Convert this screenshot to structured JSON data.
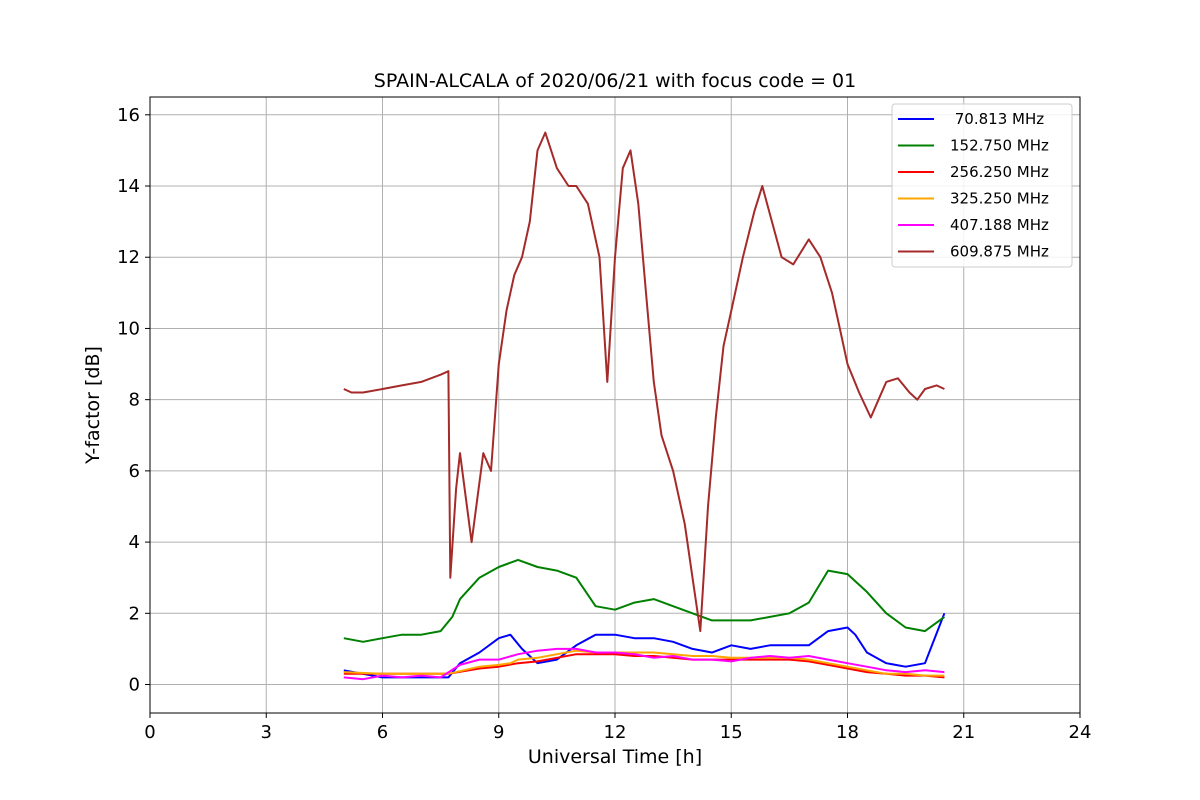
{
  "chart_data": {
    "type": "line",
    "title": "SPAIN-ALCALA of 2020/06/21 with focus code = 01",
    "xlabel": "Universal Time [h]",
    "ylabel": "Y-factor [dB]",
    "xlim": [
      0,
      24
    ],
    "ylim": [
      -0.8,
      16.5
    ],
    "xticks": [
      0,
      3,
      6,
      9,
      12,
      15,
      18,
      21,
      24
    ],
    "yticks": [
      0,
      2,
      4,
      6,
      8,
      10,
      12,
      14,
      16
    ],
    "grid": true,
    "legend_position": "top-right",
    "series": [
      {
        "name": " 70.813 MHz",
        "color": "#0000ff",
        "x": [
          5.0,
          6.0,
          7.0,
          7.7,
          8.0,
          8.5,
          9.0,
          9.3,
          9.6,
          10.0,
          10.5,
          11.0,
          11.5,
          12.0,
          12.5,
          13.0,
          13.5,
          14.0,
          14.5,
          15.0,
          15.5,
          16.0,
          16.5,
          17.0,
          17.5,
          18.0,
          18.2,
          18.5,
          19.0,
          19.5,
          20.0,
          20.5
        ],
        "y": [
          0.4,
          0.2,
          0.2,
          0.2,
          0.6,
          0.9,
          1.3,
          1.4,
          1.0,
          0.6,
          0.7,
          1.1,
          1.4,
          1.4,
          1.3,
          1.3,
          1.2,
          1.0,
          0.9,
          1.1,
          1.0,
          1.1,
          1.1,
          1.1,
          1.5,
          1.6,
          1.4,
          0.9,
          0.6,
          0.5,
          0.6,
          2.0
        ]
      },
      {
        "name": "152.750 MHz",
        "color": "#008000",
        "x": [
          5.0,
          5.5,
          6.0,
          6.5,
          7.0,
          7.5,
          7.8,
          8.0,
          8.5,
          9.0,
          9.5,
          10.0,
          10.5,
          11.0,
          11.5,
          12.0,
          12.5,
          13.0,
          13.5,
          14.0,
          14.5,
          15.0,
          15.5,
          16.0,
          16.5,
          17.0,
          17.5,
          18.0,
          18.5,
          19.0,
          19.5,
          20.0,
          20.5
        ],
        "y": [
          1.3,
          1.2,
          1.3,
          1.4,
          1.4,
          1.5,
          1.9,
          2.4,
          3.0,
          3.3,
          3.5,
          3.3,
          3.2,
          3.0,
          2.2,
          2.1,
          2.3,
          2.4,
          2.2,
          2.0,
          1.8,
          1.8,
          1.8,
          1.9,
          2.0,
          2.3,
          3.2,
          3.1,
          2.6,
          2.0,
          1.6,
          1.5,
          1.9
        ]
      },
      {
        "name": "256.250 MHz",
        "color": "#ff0000",
        "x": [
          5.0,
          6.0,
          7.0,
          7.7,
          8.5,
          9.0,
          9.5,
          10.0,
          10.5,
          11.0,
          11.5,
          12.0,
          12.5,
          13.0,
          13.5,
          14.0,
          14.5,
          15.0,
          15.5,
          16.0,
          16.5,
          17.0,
          17.5,
          18.0,
          18.5,
          19.0,
          19.5,
          20.0,
          20.5
        ],
        "y": [
          0.3,
          0.3,
          0.3,
          0.3,
          0.45,
          0.5,
          0.6,
          0.65,
          0.75,
          0.85,
          0.85,
          0.85,
          0.8,
          0.8,
          0.75,
          0.7,
          0.7,
          0.7,
          0.7,
          0.7,
          0.7,
          0.65,
          0.55,
          0.45,
          0.35,
          0.3,
          0.25,
          0.25,
          0.2
        ]
      },
      {
        "name": "325.250 MHz",
        "color": "#ffa500",
        "x": [
          5.0,
          6.0,
          7.0,
          7.7,
          8.5,
          9.0,
          9.3,
          9.5,
          10.0,
          10.5,
          11.0,
          11.5,
          12.0,
          12.5,
          13.0,
          13.5,
          14.0,
          14.5,
          15.0,
          15.5,
          16.0,
          16.5,
          17.0,
          17.5,
          18.0,
          18.5,
          19.0,
          19.5,
          20.0,
          20.5
        ],
        "y": [
          0.35,
          0.3,
          0.3,
          0.3,
          0.5,
          0.55,
          0.6,
          0.7,
          0.75,
          0.85,
          0.95,
          0.9,
          0.9,
          0.9,
          0.9,
          0.85,
          0.8,
          0.8,
          0.75,
          0.75,
          0.75,
          0.75,
          0.7,
          0.6,
          0.5,
          0.4,
          0.3,
          0.3,
          0.25,
          0.25
        ]
      },
      {
        "name": "407.188 MHz",
        "color": "#ff00ff",
        "x": [
          5.0,
          5.5,
          6.0,
          6.5,
          7.0,
          7.5,
          8.0,
          8.5,
          9.0,
          9.5,
          10.0,
          10.5,
          11.0,
          11.5,
          12.0,
          12.5,
          13.0,
          13.5,
          14.0,
          14.5,
          15.0,
          15.5,
          16.0,
          16.5,
          17.0,
          17.5,
          18.0,
          18.5,
          19.0,
          19.5,
          20.0,
          20.5
        ],
        "y": [
          0.2,
          0.15,
          0.25,
          0.2,
          0.25,
          0.2,
          0.55,
          0.7,
          0.7,
          0.85,
          0.95,
          1.0,
          1.0,
          0.9,
          0.9,
          0.85,
          0.75,
          0.8,
          0.7,
          0.7,
          0.65,
          0.75,
          0.8,
          0.75,
          0.8,
          0.7,
          0.6,
          0.5,
          0.4,
          0.35,
          0.4,
          0.35
        ]
      },
      {
        "name": "609.875 MHz",
        "color": "#a52a2a",
        "x": [
          5.0,
          5.2,
          5.5,
          6.0,
          6.5,
          7.0,
          7.5,
          7.7,
          7.75,
          7.9,
          8.0,
          8.3,
          8.6,
          8.8,
          9.0,
          9.2,
          9.4,
          9.6,
          9.8,
          10.0,
          10.2,
          10.5,
          10.8,
          11.0,
          11.3,
          11.6,
          11.8,
          12.0,
          12.2,
          12.4,
          12.6,
          12.8,
          13.0,
          13.2,
          13.5,
          13.8,
          14.0,
          14.2,
          14.4,
          14.6,
          14.8,
          15.0,
          15.3,
          15.6,
          15.8,
          16.0,
          16.3,
          16.6,
          17.0,
          17.3,
          17.6,
          17.8,
          18.0,
          18.3,
          18.6,
          18.8,
          19.0,
          19.3,
          19.6,
          19.8,
          20.0,
          20.3,
          20.5
        ],
        "y": [
          8.3,
          8.2,
          8.2,
          8.3,
          8.4,
          8.5,
          8.7,
          8.8,
          3.0,
          5.5,
          6.5,
          4.0,
          6.5,
          6.0,
          9.0,
          10.5,
          11.5,
          12.0,
          13.0,
          15.0,
          15.5,
          14.5,
          14.0,
          14.0,
          13.5,
          12.0,
          8.5,
          12.0,
          14.5,
          15.0,
          13.5,
          11.0,
          8.5,
          7.0,
          6.0,
          4.5,
          3.0,
          1.5,
          5.0,
          7.5,
          9.5,
          10.5,
          12.0,
          13.3,
          14.0,
          13.2,
          12.0,
          11.8,
          12.5,
          12.0,
          11.0,
          10.0,
          9.0,
          8.2,
          7.5,
          8.0,
          8.5,
          8.6,
          8.2,
          8.0,
          8.3,
          8.4,
          8.3
        ]
      }
    ]
  }
}
